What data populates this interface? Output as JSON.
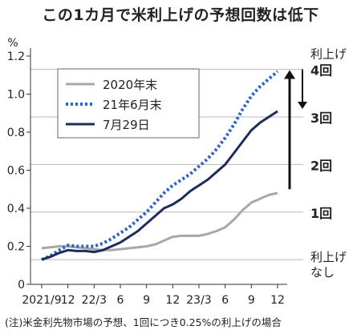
{
  "title": "この1カ月で米利上げの予想回数は低下",
  "note": "(注)米金利先物市場の予想、1回につき0.25%の利上げの場合",
  "chart_data": {
    "type": "line",
    "yunit": "%",
    "ylim": [
      0,
      1.2
    ],
    "yticks": [
      "0",
      "0.2",
      "0.4",
      "0.6",
      "0.8",
      "1.0",
      "1.2"
    ],
    "xticklabels": [
      "2021/9",
      "12",
      "22/3",
      "6",
      "9",
      "12",
      "23/3",
      "6",
      "9",
      "12"
    ],
    "x": [
      "2021/9",
      "2021/10",
      "2021/11",
      "2021/12",
      "2022/1",
      "2022/2",
      "2022/3",
      "2022/4",
      "2022/5",
      "2022/6",
      "2022/7",
      "2022/8",
      "2022/9",
      "2022/10",
      "2022/11",
      "2022/12",
      "2023/1",
      "2023/2",
      "2023/3",
      "2023/4",
      "2023/5",
      "2023/6",
      "2023/7",
      "2023/8",
      "2023/9",
      "2023/10",
      "2023/11",
      "2023/12"
    ],
    "series": [
      {
        "name": "2020年末",
        "color": "#a8a8a8",
        "style": "solid",
        "values": [
          0.19,
          0.195,
          0.2,
          0.2,
          0.195,
          0.19,
          0.185,
          0.18,
          0.18,
          0.185,
          0.19,
          0.195,
          0.2,
          0.21,
          0.23,
          0.25,
          0.255,
          0.255,
          0.255,
          0.265,
          0.28,
          0.3,
          0.34,
          0.39,
          0.43,
          0.45,
          0.47,
          0.48
        ]
      },
      {
        "name": "21年6月末",
        "color": "#2e64c4",
        "style": "dotted",
        "values": [
          0.13,
          0.15,
          0.18,
          0.205,
          0.2,
          0.2,
          0.2,
          0.215,
          0.24,
          0.27,
          0.3,
          0.34,
          0.38,
          0.43,
          0.48,
          0.52,
          0.55,
          0.58,
          0.62,
          0.66,
          0.71,
          0.77,
          0.84,
          0.92,
          0.99,
          1.04,
          1.08,
          1.12
        ]
      },
      {
        "name": "7月29日",
        "color": "#1c2c5e",
        "style": "solid",
        "values": [
          0.13,
          0.145,
          0.165,
          0.18,
          0.175,
          0.175,
          0.17,
          0.18,
          0.2,
          0.22,
          0.25,
          0.28,
          0.32,
          0.36,
          0.4,
          0.42,
          0.45,
          0.49,
          0.52,
          0.55,
          0.59,
          0.63,
          0.69,
          0.75,
          0.81,
          0.85,
          0.88,
          0.91
        ]
      }
    ],
    "hikes": [
      {
        "label": "利上げ",
        "sublabel": "なし"
      },
      {
        "label": "1回"
      },
      {
        "label": "2回"
      },
      {
        "label": "3回"
      },
      {
        "label": "4回",
        "toplabel": "利上げ"
      }
    ],
    "grid": "horizontal at each hike level",
    "legend": "top-left"
  }
}
